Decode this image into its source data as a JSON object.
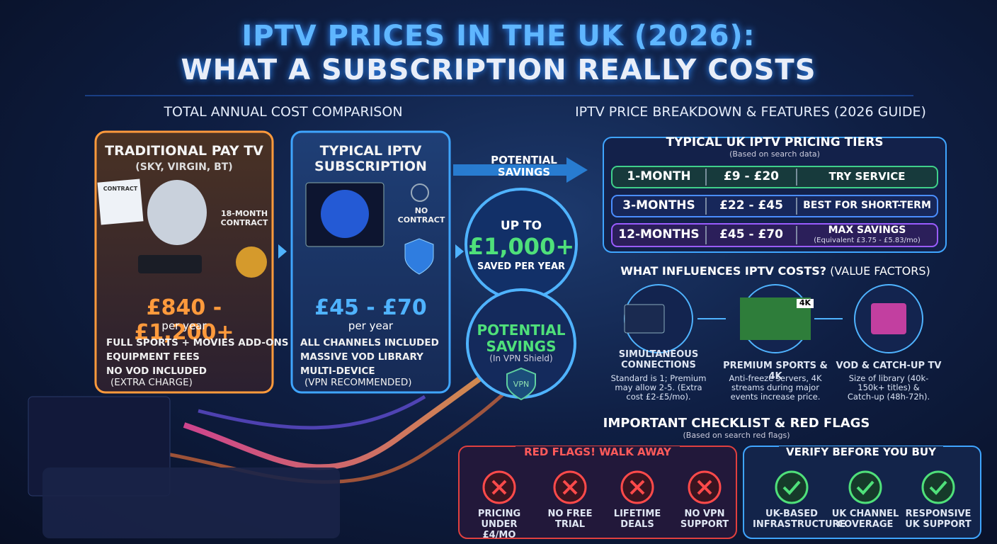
{
  "header": {
    "title_line1": "IPTV PRICES IN THE UK (2026):",
    "title_line2": "WHAT A SUBSCRIPTION REALLY COSTS"
  },
  "comparison": {
    "heading": "TOTAL ANNUAL COST COMPARISON",
    "traditional": {
      "title": "TRADITIONAL PAY TV",
      "subtitle": "(SKY, VIRGIN, BT)",
      "contract_doc": "CONTRACT",
      "contract_note": "18-MONTH CONTRACT",
      "price": "£840 - £1,200+",
      "period": "per year",
      "bullets": [
        "FULL SPORTS + MOVIES ADD-ONS",
        "EQUIPMENT FEES",
        "NO VOD INCLUDED"
      ],
      "bullet_note": "(EXTRA CHARGE)"
    },
    "iptv": {
      "title": "TYPICAL IPTV SUBSCRIPTION",
      "contract_note": "NO CONTRACT",
      "price": "£45 - £70",
      "period": "per year",
      "bullets": [
        "ALL CHANNELS INCLUDED",
        "MASSIVE VOD LIBRARY",
        "MULTI-DEVICE"
      ],
      "bullet_note": "(VPN RECOMMENDED)"
    },
    "savings": {
      "label": "POTENTIAL SAVINGS",
      "circle_top": "UP TO",
      "circle_amount": "£1,000+",
      "circle_bottom": "SAVED PER YEAR",
      "shield_title": "POTENTIAL SAVINGS",
      "shield_note": "(In VPN Shield)",
      "shield_icon": "VPN"
    }
  },
  "breakdown": {
    "heading": "IPTV PRICE BREAKDOWN & FEATURES (2026 GUIDE)",
    "tiers": {
      "title": "TYPICAL UK IPTV PRICING TIERS",
      "subtitle": "(Based on search data)",
      "rows": [
        [
          "1-MONTH",
          "£9 - £20",
          "TRY SERVICE"
        ],
        [
          "3-MONTHS",
          "£22 - £45",
          "BEST FOR SHORT-TERM"
        ],
        [
          "12-MONTHS",
          "£45 - £70",
          "MAX SAVINGS"
        ]
      ],
      "row3_note": "(Equivalent £3.75 - £5.83/mo)"
    },
    "factors": {
      "title": "WHAT INFLUENCES IPTV COSTS?",
      "title_suffix": "(VALUE FACTORS)",
      "items": [
        {
          "title": "SIMULTANEOUS CONNECTIONS",
          "text": "Standard is 1; Premium may allow 2-5. (Extra cost £2-£5/mo)."
        },
        {
          "title": "PREMIUM SPORTS & 4K",
          "badge": "4K",
          "text": "Anti-freeze servers, 4K streams during major events increase price."
        },
        {
          "title": "VOD & CATCH-UP TV",
          "text": "Size of library (40k-150k+ titles) & Catch-up (48h-72h)."
        }
      ]
    }
  },
  "checklist": {
    "title": "IMPORTANT CHECKLIST & RED FLAGS",
    "subtitle": "(Based on search red flags)",
    "red_flags": {
      "title": "RED FLAGS! WALK AWAY",
      "items": [
        "PRICING UNDER £4/MO",
        "NO FREE TRIAL",
        "LIFETIME DEALS",
        "NO VPN SUPPORT"
      ]
    },
    "verify": {
      "title": "VERIFY BEFORE YOU BUY",
      "items": [
        "UK-BASED INFRASTRUCTURE",
        "UK CHANNEL COVERAGE",
        "RESPONSIVE UK SUPPORT"
      ]
    }
  }
}
